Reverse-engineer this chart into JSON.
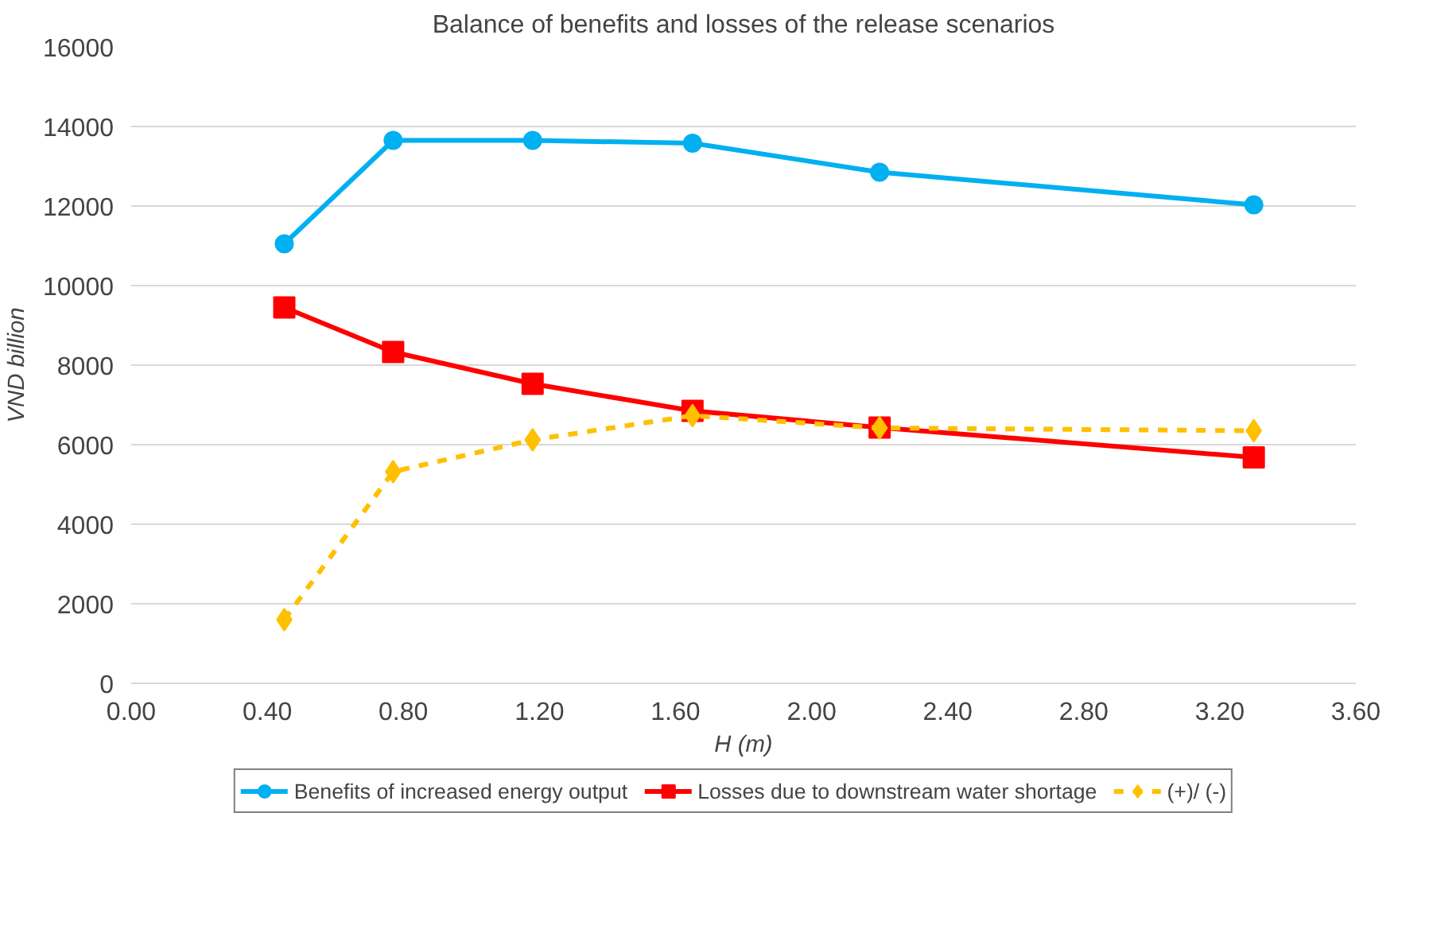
{
  "chart_data": {
    "type": "line",
    "title": "Balance of benefits and losses of the release scenarios",
    "xlabel": "H (m)",
    "ylabel": "VND billion",
    "x": [
      0.45,
      0.77,
      1.18,
      1.65,
      2.2,
      3.3
    ],
    "series": [
      {
        "name": "Benefits of increased energy output",
        "color": "#00b0f0",
        "marker": "circle",
        "line_style": "solid",
        "values": [
          11050,
          13650,
          13650,
          13580,
          12850,
          12030
        ]
      },
      {
        "name": "Losses due to downstream water shortage",
        "color": "#ff0000",
        "marker": "square",
        "line_style": "solid",
        "values": [
          9450,
          8330,
          7530,
          6850,
          6430,
          5680
        ]
      },
      {
        "name": "(+)/ (-)",
        "color": "#ffc000",
        "marker": "diamond",
        "line_style": "dashed",
        "values": [
          1600,
          5320,
          6120,
          6730,
          6420,
          6350
        ]
      }
    ],
    "xlim": [
      0,
      3.6
    ],
    "xticks": [
      {
        "value": 0,
        "label": "0.00"
      },
      {
        "value": 0.4,
        "label": "0.40"
      },
      {
        "value": 0.8,
        "label": "0.80"
      },
      {
        "value": 1.2,
        "label": "1.20"
      },
      {
        "value": 1.6,
        "label": "1.60"
      },
      {
        "value": 2.0,
        "label": "2.00"
      },
      {
        "value": 2.4,
        "label": "2.40"
      },
      {
        "value": 2.8,
        "label": "2.80"
      },
      {
        "value": 3.2,
        "label": "3.20"
      },
      {
        "value": 3.6,
        "label": "3.60"
      }
    ],
    "ylim": [
      0,
      16000
    ],
    "yticks": [
      0,
      2000,
      4000,
      6000,
      8000,
      10000,
      12000,
      14000,
      16000
    ],
    "grid": "y",
    "legend": "bottom"
  }
}
